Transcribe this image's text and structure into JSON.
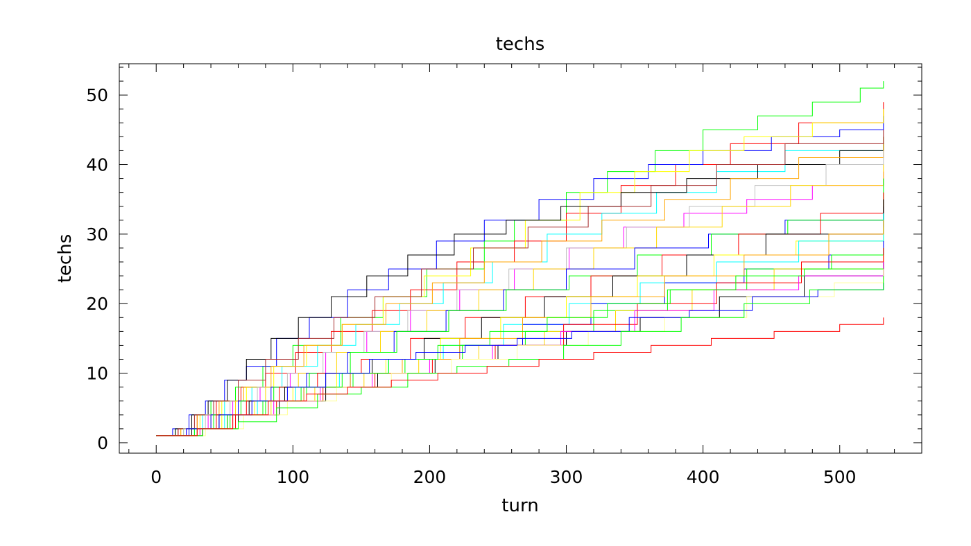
{
  "chart_data": {
    "type": "line",
    "title": "techs",
    "xlabel": "turn",
    "ylabel": "techs",
    "xlim": [
      -27,
      560
    ],
    "ylim": [
      -1.5,
      54.5
    ],
    "x_ticks": [
      0,
      100,
      200,
      300,
      400,
      500
    ],
    "y_ticks": [
      0,
      10,
      20,
      30,
      40,
      50
    ],
    "x_tick_labels": [
      "0",
      "100",
      "200",
      "300",
      "400",
      "500"
    ],
    "y_tick_labels": [
      "0",
      "10",
      "20",
      "30",
      "40",
      "50"
    ],
    "grid": false,
    "legend": "none",
    "step_style": "post",
    "series": [
      {
        "color": "#00ff00",
        "x": [
          0,
          14,
          26,
          40,
          58,
          78,
          100,
          135,
          166,
          198,
          240,
          262,
          300,
          330,
          365,
          400,
          440,
          480,
          515,
          532
        ],
        "values": [
          1,
          2,
          4,
          6,
          8,
          11,
          14,
          18,
          21,
          25,
          29,
          32,
          36,
          39,
          42,
          45,
          47,
          49,
          51,
          52
        ]
      },
      {
        "color": "#ff0000",
        "x": [
          0,
          16,
          30,
          44,
          62,
          80,
          102,
          128,
          158,
          186,
          220,
          262,
          300,
          340,
          380,
          420,
          470,
          532
        ],
        "values": [
          1,
          2,
          4,
          6,
          8,
          10,
          13,
          16,
          19,
          22,
          26,
          29,
          33,
          37,
          40,
          43,
          46,
          49
        ]
      },
      {
        "color": "#0000ff",
        "x": [
          0,
          12,
          24,
          36,
          50,
          66,
          88,
          112,
          140,
          170,
          205,
          240,
          280,
          320,
          360,
          400,
          450,
          500,
          532
        ],
        "values": [
          1,
          2,
          4,
          6,
          9,
          11,
          15,
          18,
          22,
          25,
          29,
          32,
          35,
          38,
          40,
          42,
          44,
          45,
          47
        ]
      },
      {
        "color": "#ffff00",
        "x": [
          0,
          18,
          32,
          48,
          66,
          86,
          110,
          136,
          166,
          196,
          230,
          270,
          310,
          350,
          390,
          430,
          480,
          532
        ],
        "values": [
          1,
          2,
          4,
          6,
          8,
          11,
          14,
          17,
          21,
          24,
          28,
          32,
          36,
          39,
          42,
          44,
          46,
          48
        ]
      },
      {
        "color": "#00ffff",
        "x": [
          0,
          20,
          34,
          50,
          70,
          92,
          118,
          146,
          178,
          210,
          246,
          286,
          326,
          366,
          410,
          460,
          532
        ],
        "values": [
          1,
          2,
          4,
          6,
          8,
          11,
          14,
          17,
          20,
          23,
          26,
          30,
          33,
          36,
          39,
          42,
          44
        ]
      },
      {
        "color": "#ff00ff",
        "x": [
          0,
          22,
          38,
          56,
          76,
          98,
          124,
          154,
          186,
          222,
          262,
          302,
          342,
          386,
          432,
          480,
          532
        ],
        "values": [
          1,
          2,
          4,
          6,
          8,
          10,
          13,
          16,
          19,
          22,
          25,
          28,
          31,
          33,
          35,
          37,
          39
        ]
      },
      {
        "color": "#000000",
        "x": [
          0,
          14,
          26,
          38,
          52,
          66,
          84,
          104,
          128,
          154,
          184,
          218,
          256,
          296,
          340,
          388,
          440,
          500,
          532
        ],
        "values": [
          1,
          2,
          4,
          6,
          9,
          12,
          15,
          18,
          21,
          24,
          27,
          30,
          32,
          34,
          36,
          38,
          40,
          42,
          43
        ]
      },
      {
        "color": "#ffa500",
        "x": [
          0,
          18,
          30,
          46,
          64,
          84,
          108,
          136,
          168,
          202,
          240,
          282,
          326,
          372,
          420,
          470,
          532
        ],
        "values": [
          1,
          2,
          4,
          6,
          8,
          11,
          14,
          17,
          20,
          23,
          26,
          29,
          32,
          35,
          38,
          41,
          44
        ]
      },
      {
        "color": "#a52a2a",
        "x": [
          0,
          16,
          28,
          42,
          60,
          80,
          104,
          130,
          160,
          194,
          232,
          272,
          316,
          362,
          410,
          460,
          532
        ],
        "values": [
          1,
          2,
          4,
          6,
          9,
          12,
          15,
          18,
          21,
          25,
          28,
          31,
          34,
          37,
          40,
          43,
          45
        ]
      },
      {
        "color": "#c0c0c0",
        "x": [
          0,
          20,
          36,
          54,
          74,
          96,
          122,
          152,
          184,
          220,
          258,
          300,
          344,
          390,
          438,
          490,
          532
        ],
        "values": [
          1,
          2,
          4,
          6,
          8,
          10,
          13,
          16,
          19,
          22,
          25,
          28,
          31,
          34,
          37,
          40,
          42
        ]
      },
      {
        "color": "#ffd700",
        "x": [
          0,
          24,
          40,
          58,
          80,
          104,
          132,
          164,
          198,
          236,
          276,
          320,
          366,
          414,
          464,
          532
        ],
        "values": [
          1,
          2,
          4,
          6,
          8,
          10,
          13,
          16,
          19,
          22,
          25,
          28,
          31,
          34,
          37,
          40
        ]
      },
      {
        "color": "#0000ff",
        "x": [
          0,
          22,
          40,
          60,
          84,
          110,
          140,
          174,
          212,
          254,
          300,
          350,
          404,
          460,
          532
        ],
        "values": [
          1,
          2,
          4,
          6,
          8,
          10,
          13,
          16,
          19,
          22,
          25,
          28,
          30,
          32,
          34
        ]
      },
      {
        "color": "#00ff00",
        "x": [
          0,
          24,
          42,
          62,
          86,
          112,
          142,
          176,
          214,
          256,
          302,
          352,
          406,
          462,
          532
        ],
        "values": [
          1,
          2,
          4,
          6,
          8,
          10,
          13,
          16,
          19,
          22,
          24,
          27,
          30,
          32,
          38
        ]
      },
      {
        "color": "#ff0000",
        "x": [
          0,
          26,
          44,
          66,
          90,
          118,
          150,
          186,
          226,
          270,
          318,
          370,
          426,
          486,
          532
        ],
        "values": [
          1,
          2,
          4,
          6,
          8,
          10,
          12,
          15,
          18,
          21,
          24,
          27,
          30,
          33,
          36
        ]
      },
      {
        "color": "#000000",
        "x": [
          0,
          26,
          46,
          68,
          94,
          124,
          158,
          196,
          238,
          284,
          334,
          388,
          446,
          532
        ],
        "values": [
          1,
          2,
          4,
          6,
          8,
          10,
          12,
          15,
          18,
          21,
          24,
          27,
          30,
          35
        ]
      },
      {
        "color": "#ffff00",
        "x": [
          0,
          28,
          48,
          72,
          100,
          132,
          168,
          208,
          252,
          300,
          352,
          408,
          468,
          532
        ],
        "values": [
          1,
          2,
          4,
          6,
          8,
          10,
          12,
          15,
          18,
          21,
          24,
          27,
          29,
          31
        ]
      },
      {
        "color": "#00ffff",
        "x": [
          0,
          28,
          50,
          74,
          102,
          134,
          170,
          210,
          254,
          302,
          354,
          410,
          470,
          532
        ],
        "values": [
          1,
          2,
          4,
          6,
          8,
          10,
          12,
          14,
          17,
          20,
          23,
          26,
          29,
          33
        ]
      },
      {
        "color": "#0000ff",
        "x": [
          0,
          30,
          52,
          78,
          108,
          142,
          180,
          222,
          268,
          318,
          372,
          430,
          492,
          532
        ],
        "values": [
          1,
          2,
          4,
          6,
          8,
          10,
          12,
          14,
          17,
          20,
          23,
          25,
          27,
          29
        ]
      },
      {
        "color": "#00ff00",
        "x": [
          0,
          30,
          54,
          80,
          110,
          144,
          182,
          224,
          270,
          320,
          374,
          432,
          494,
          532
        ],
        "values": [
          1,
          2,
          4,
          6,
          8,
          10,
          12,
          14,
          16,
          19,
          22,
          25,
          27,
          28
        ]
      },
      {
        "color": "#ffd700",
        "x": [
          0,
          32,
          56,
          84,
          116,
          152,
          192,
          236,
          284,
          336,
          392,
          452,
          532
        ],
        "values": [
          1,
          2,
          4,
          6,
          8,
          10,
          12,
          14,
          16,
          19,
          22,
          25,
          27
        ]
      },
      {
        "color": "#ff0000",
        "x": [
          0,
          34,
          58,
          88,
          122,
          160,
          202,
          248,
          298,
          352,
          410,
          472,
          532
        ],
        "values": [
          1,
          2,
          4,
          6,
          8,
          10,
          12,
          14,
          17,
          20,
          23,
          26,
          28
        ]
      },
      {
        "color": "#000000",
        "x": [
          0,
          34,
          60,
          90,
          124,
          162,
          204,
          250,
          300,
          354,
          412,
          474,
          532
        ],
        "values": [
          1,
          2,
          4,
          6,
          8,
          10,
          12,
          14,
          16,
          18,
          21,
          24,
          26
        ]
      },
      {
        "color": "#ff00ff",
        "x": [
          0,
          32,
          56,
          86,
          120,
          158,
          200,
          246,
          296,
          350,
          408,
          470,
          532
        ],
        "values": [
          1,
          2,
          4,
          6,
          8,
          10,
          12,
          14,
          16,
          19,
          22,
          24,
          26
        ]
      },
      {
        "color": "#ffa500",
        "x": [
          0,
          30,
          52,
          78,
          108,
          142,
          180,
          222,
          268,
          318,
          372,
          430,
          492,
          532
        ],
        "values": [
          1,
          2,
          4,
          6,
          8,
          10,
          12,
          15,
          18,
          21,
          24,
          27,
          30,
          32
        ]
      },
      {
        "color": "#ffff99",
        "x": [
          0,
          36,
          64,
          96,
          132,
          172,
          216,
          264,
          316,
          372,
          432,
          496,
          532
        ],
        "values": [
          1,
          2,
          4,
          6,
          8,
          10,
          12,
          14,
          16,
          18,
          21,
          23,
          25
        ]
      },
      {
        "color": "#00ff00",
        "x": [
          0,
          28,
          52,
          78,
          106,
          136,
          170,
          206,
          244,
          286,
          330,
          376,
          424,
          474,
          532
        ],
        "values": [
          1,
          2,
          4,
          6,
          8,
          10,
          12,
          14,
          16,
          18,
          20,
          22,
          24,
          25,
          25
        ]
      },
      {
        "color": "#0000ff",
        "x": [
          0,
          24,
          46,
          70,
          96,
          124,
          156,
          190,
          226,
          264,
          304,
          346,
          390,
          436,
          484,
          532
        ],
        "values": [
          1,
          2,
          4,
          6,
          8,
          10,
          12,
          13,
          14,
          15,
          16,
          18,
          19,
          21,
          22,
          23
        ]
      },
      {
        "color": "#00ff00",
        "x": [
          0,
          34,
          60,
          88,
          118,
          150,
          184,
          220,
          258,
          298,
          340,
          384,
          430,
          478,
          532
        ],
        "values": [
          1,
          2,
          3,
          5,
          7,
          8,
          10,
          11,
          12,
          14,
          16,
          18,
          20,
          22,
          24
        ]
      },
      {
        "color": "#ff0000",
        "x": [
          0,
          30,
          56,
          82,
          110,
          140,
          172,
          206,
          242,
          280,
          320,
          362,
          406,
          452,
          500,
          532
        ],
        "values": [
          1,
          2,
          4,
          6,
          7,
          8,
          9,
          10,
          11,
          12,
          13,
          14,
          15,
          16,
          17,
          18
        ]
      }
    ]
  }
}
